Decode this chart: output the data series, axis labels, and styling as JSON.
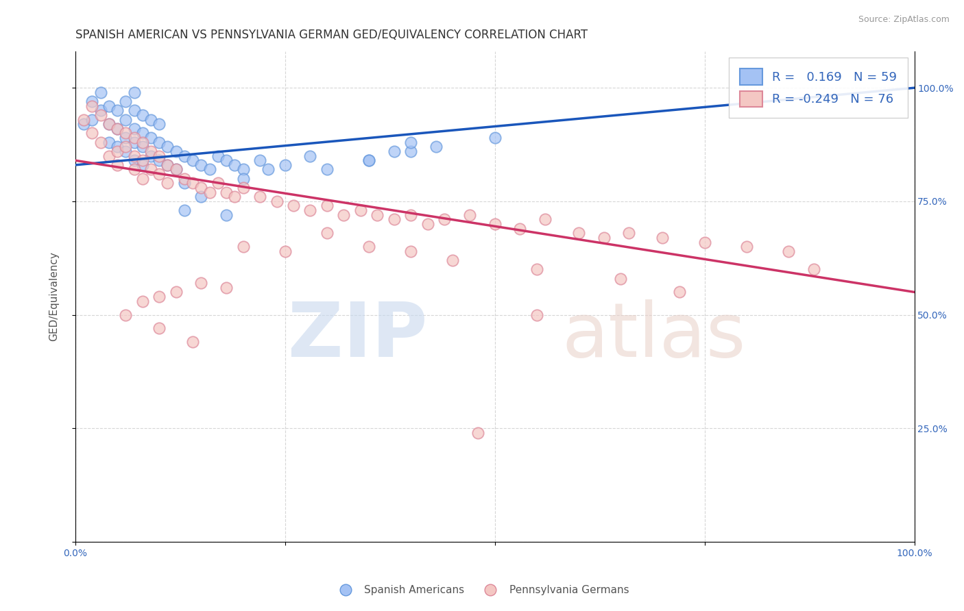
{
  "title": "SPANISH AMERICAN VS PENNSYLVANIA GERMAN GED/EQUIVALENCY CORRELATION CHART",
  "source": "Source: ZipAtlas.com",
  "ylabel": "GED/Equivalency",
  "xlim": [
    0.0,
    1.0
  ],
  "ylim": [
    0.0,
    1.08
  ],
  "blue_R": 0.169,
  "blue_N": 59,
  "pink_R": -0.249,
  "pink_N": 76,
  "blue_color": "#a4c2f4",
  "pink_color": "#f4c7c3",
  "blue_edge_color": "#6699dd",
  "pink_edge_color": "#dd8899",
  "blue_line_color": "#1a56bb",
  "pink_line_color": "#cc3366",
  "background_color": "#ffffff",
  "blue_line_x0": 0.0,
  "blue_line_y0": 0.83,
  "blue_line_x1": 1.0,
  "blue_line_y1": 1.0,
  "pink_line_x0": 0.0,
  "pink_line_y0": 0.84,
  "pink_line_x1": 1.0,
  "pink_line_y1": 0.55,
  "blue_scatter_x": [
    0.01,
    0.02,
    0.02,
    0.03,
    0.03,
    0.04,
    0.04,
    0.04,
    0.05,
    0.05,
    0.05,
    0.06,
    0.06,
    0.06,
    0.06,
    0.07,
    0.07,
    0.07,
    0.07,
    0.07,
    0.08,
    0.08,
    0.08,
    0.08,
    0.09,
    0.09,
    0.09,
    0.1,
    0.1,
    0.1,
    0.11,
    0.11,
    0.12,
    0.12,
    0.13,
    0.14,
    0.15,
    0.16,
    0.17,
    0.18,
    0.19,
    0.2,
    0.22,
    0.13,
    0.15,
    0.2,
    0.23,
    0.28,
    0.35,
    0.4,
    0.13,
    0.18,
    0.25,
    0.3,
    0.35,
    0.38,
    0.4,
    0.43,
    0.5
  ],
  "blue_scatter_y": [
    0.92,
    0.97,
    0.93,
    0.95,
    0.99,
    0.88,
    0.92,
    0.96,
    0.87,
    0.91,
    0.95,
    0.86,
    0.89,
    0.93,
    0.97,
    0.84,
    0.88,
    0.91,
    0.95,
    0.99,
    0.83,
    0.87,
    0.9,
    0.94,
    0.85,
    0.89,
    0.93,
    0.84,
    0.88,
    0.92,
    0.83,
    0.87,
    0.82,
    0.86,
    0.85,
    0.84,
    0.83,
    0.82,
    0.85,
    0.84,
    0.83,
    0.82,
    0.84,
    0.79,
    0.76,
    0.8,
    0.82,
    0.85,
    0.84,
    0.86,
    0.73,
    0.72,
    0.83,
    0.82,
    0.84,
    0.86,
    0.88,
    0.87,
    0.89
  ],
  "pink_scatter_x": [
    0.01,
    0.02,
    0.02,
    0.03,
    0.03,
    0.04,
    0.04,
    0.05,
    0.05,
    0.05,
    0.06,
    0.06,
    0.07,
    0.07,
    0.07,
    0.08,
    0.08,
    0.08,
    0.09,
    0.09,
    0.1,
    0.1,
    0.11,
    0.11,
    0.12,
    0.13,
    0.14,
    0.15,
    0.16,
    0.17,
    0.18,
    0.19,
    0.2,
    0.22,
    0.24,
    0.26,
    0.28,
    0.3,
    0.32,
    0.34,
    0.36,
    0.38,
    0.4,
    0.42,
    0.44,
    0.47,
    0.5,
    0.53,
    0.56,
    0.6,
    0.63,
    0.66,
    0.7,
    0.75,
    0.8,
    0.85,
    0.2,
    0.25,
    0.3,
    0.35,
    0.4,
    0.45,
    0.15,
    0.18,
    0.12,
    0.1,
    0.08,
    0.06,
    0.55,
    0.65,
    0.72,
    0.88,
    0.1,
    0.14,
    0.48,
    0.55
  ],
  "pink_scatter_y": [
    0.93,
    0.96,
    0.9,
    0.94,
    0.88,
    0.92,
    0.85,
    0.91,
    0.86,
    0.83,
    0.9,
    0.87,
    0.89,
    0.85,
    0.82,
    0.88,
    0.84,
    0.8,
    0.86,
    0.82,
    0.85,
    0.81,
    0.83,
    0.79,
    0.82,
    0.8,
    0.79,
    0.78,
    0.77,
    0.79,
    0.77,
    0.76,
    0.78,
    0.76,
    0.75,
    0.74,
    0.73,
    0.74,
    0.72,
    0.73,
    0.72,
    0.71,
    0.72,
    0.7,
    0.71,
    0.72,
    0.7,
    0.69,
    0.71,
    0.68,
    0.67,
    0.68,
    0.67,
    0.66,
    0.65,
    0.64,
    0.65,
    0.64,
    0.68,
    0.65,
    0.64,
    0.62,
    0.57,
    0.56,
    0.55,
    0.54,
    0.53,
    0.5,
    0.6,
    0.58,
    0.55,
    0.6,
    0.47,
    0.44,
    0.24,
    0.5
  ],
  "title_fontsize": 12,
  "axis_label_fontsize": 11,
  "tick_fontsize": 10,
  "legend_fontsize": 13
}
